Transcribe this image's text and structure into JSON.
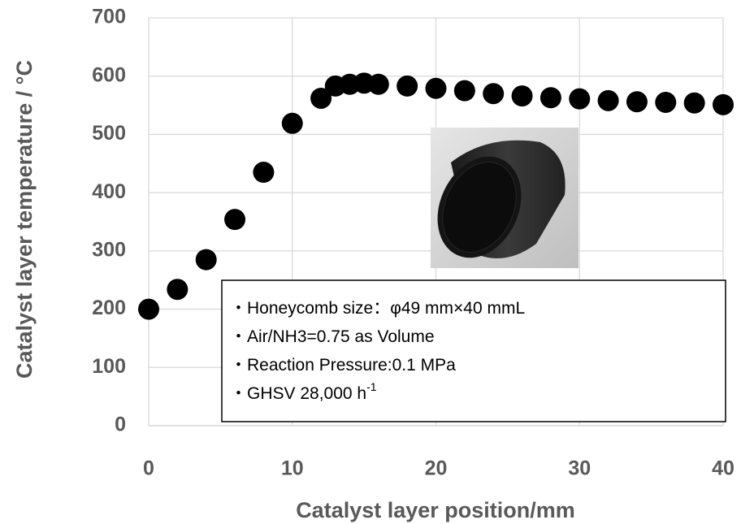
{
  "chart_data": {
    "type": "scatter",
    "x_label": "Catalyst layer position/mm",
    "y_label": "Catalyst layer temperature / °C",
    "x": [
      0,
      2,
      4,
      6,
      8,
      10,
      12,
      13,
      14,
      15,
      16,
      18,
      20,
      22,
      24,
      26,
      28,
      30,
      32,
      34,
      36,
      38,
      40
    ],
    "values": [
      200,
      234,
      285,
      354,
      435,
      519,
      562,
      583,
      586,
      588,
      586,
      583,
      579,
      575,
      570,
      566,
      563,
      561,
      558,
      556,
      555,
      554,
      551
    ],
    "color": "#000000",
    "xlim": [
      0,
      40
    ],
    "xticks": [
      0,
      10,
      20,
      30,
      40
    ],
    "ylim": [
      0,
      700
    ],
    "yticks": [
      0,
      100,
      200,
      300,
      400,
      500,
      600,
      700
    ],
    "grid": true,
    "annotations": [
      {
        "text": "・Honeycomb size：φ49 mm×40 mmL"
      },
      {
        "text": "・Air/NH3=0.75 as Volume"
      },
      {
        "text": "・Reaction Pressure:0.1 MPa"
      },
      {
        "text": "・GHSV 28,000 h",
        "superscript": "-1"
      }
    ]
  }
}
